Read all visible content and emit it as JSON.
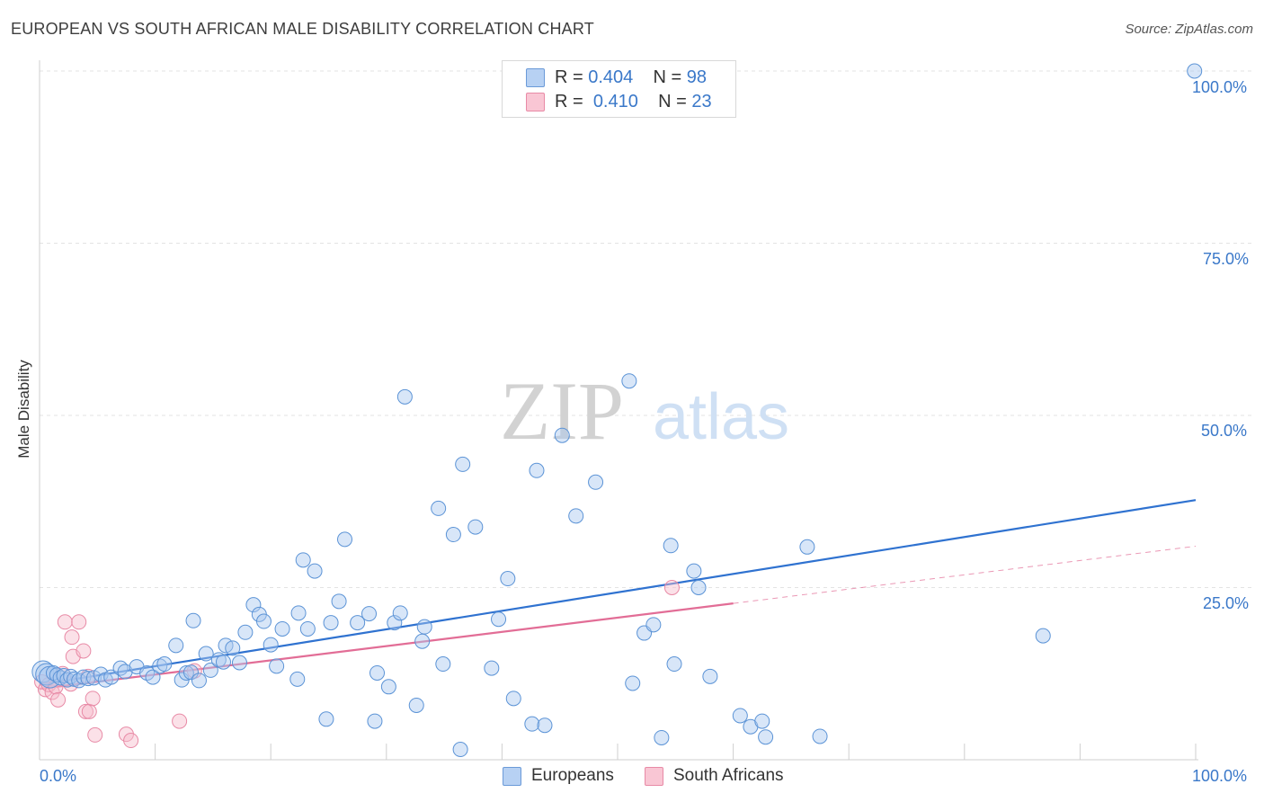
{
  "title": "EUROPEAN VS SOUTH AFRICAN MALE DISABILITY CORRELATION CHART",
  "source": "Source: ZipAtlas.com",
  "watermark": {
    "zip": "ZIP",
    "atlas": "atlas"
  },
  "legend": {
    "europeans": {
      "r_label": "R = ",
      "r_value": "0.404",
      "n_label": "N = ",
      "n_value": "98"
    },
    "south_africans": {
      "r_label": "R = ",
      "r_value": "0.410",
      "n_label": "N = ",
      "n_value": "23"
    }
  },
  "bottom_legend": {
    "europeans": "Europeans",
    "south_africans": "South Africans"
  },
  "colors": {
    "europeans_fill": "#a9c8f0",
    "europeans_stroke": "#5b93d6",
    "europeans_line": "#2f72d0",
    "south_africans_fill": "#f7bccb",
    "south_africans_stroke": "#e88aa6",
    "south_africans_line": "#e26d96",
    "axis_text": "#3a78c9",
    "grid": "#e3e3e3"
  },
  "chart_data": {
    "type": "scatter",
    "title": "EUROPEAN VS SOUTH AFRICAN MALE DISABILITY CORRELATION CHART",
    "ylabel": "Male Disability",
    "xlabel": "",
    "xlim": [
      0,
      100
    ],
    "ylim": [
      0,
      100
    ],
    "x_tick_labels": [
      "0.0%",
      "100.0%"
    ],
    "y_tick_labels": [
      "25.0%",
      "50.0%",
      "75.0%",
      "100.0%"
    ],
    "y_ticks": [
      25,
      50,
      75,
      100
    ],
    "grid": true,
    "series": [
      {
        "name": "Europeans",
        "r": 0.404,
        "n": 98,
        "trend": {
          "x": [
            0,
            100
          ],
          "y": [
            10.9,
            37.7
          ]
        },
        "points": [
          [
            0.3,
            12.8
          ],
          [
            0.6,
            12.4
          ],
          [
            0.9,
            12.0
          ],
          [
            1.2,
            12.6
          ],
          [
            1.5,
            12.3
          ],
          [
            1.8,
            11.9
          ],
          [
            2.1,
            12.2
          ],
          [
            2.4,
            11.6
          ],
          [
            2.7,
            12.1
          ],
          [
            3.0,
            11.7
          ],
          [
            3.4,
            11.5
          ],
          [
            3.8,
            12.0
          ],
          [
            4.2,
            11.8
          ],
          [
            4.7,
            11.9
          ],
          [
            5.3,
            12.4
          ],
          [
            5.7,
            11.6
          ],
          [
            6.2,
            12.0
          ],
          [
            7.0,
            13.3
          ],
          [
            7.4,
            12.8
          ],
          [
            8.4,
            13.5
          ],
          [
            9.3,
            12.6
          ],
          [
            9.8,
            12.0
          ],
          [
            10.4,
            13.6
          ],
          [
            10.8,
            13.9
          ],
          [
            11.8,
            16.6
          ],
          [
            12.3,
            11.6
          ],
          [
            12.7,
            12.6
          ],
          [
            13.1,
            12.7
          ],
          [
            13.3,
            20.2
          ],
          [
            13.8,
            11.5
          ],
          [
            14.4,
            15.4
          ],
          [
            14.8,
            13.0
          ],
          [
            15.5,
            14.5
          ],
          [
            15.9,
            14.2
          ],
          [
            16.1,
            16.6
          ],
          [
            16.7,
            16.2
          ],
          [
            17.3,
            14.1
          ],
          [
            17.8,
            18.5
          ],
          [
            18.5,
            22.5
          ],
          [
            19.0,
            21.1
          ],
          [
            19.4,
            20.1
          ],
          [
            20.0,
            16.7
          ],
          [
            20.5,
            13.6
          ],
          [
            21.0,
            19.0
          ],
          [
            22.4,
            21.3
          ],
          [
            22.8,
            29.0
          ],
          [
            23.2,
            19.0
          ],
          [
            23.8,
            27.4
          ],
          [
            22.3,
            11.7
          ],
          [
            25.2,
            19.9
          ],
          [
            25.9,
            23.0
          ],
          [
            26.4,
            32.0
          ],
          [
            27.5,
            19.9
          ],
          [
            28.5,
            21.2
          ],
          [
            29.2,
            12.6
          ],
          [
            30.7,
            19.9
          ],
          [
            31.2,
            21.3
          ],
          [
            31.6,
            52.7
          ],
          [
            32.6,
            7.9
          ],
          [
            33.3,
            19.3
          ],
          [
            34.5,
            36.5
          ],
          [
            34.9,
            13.9
          ],
          [
            35.8,
            32.7
          ],
          [
            36.6,
            42.9
          ],
          [
            37.7,
            33.8
          ],
          [
            39.1,
            13.3
          ],
          [
            39.7,
            20.4
          ],
          [
            40.5,
            26.3
          ],
          [
            41.0,
            8.9
          ],
          [
            43.0,
            42.0
          ],
          [
            42.6,
            5.2
          ],
          [
            43.7,
            5.0
          ],
          [
            45.2,
            47.1
          ],
          [
            46.4,
            35.4
          ],
          [
            48.1,
            40.3
          ],
          [
            51.0,
            55.0
          ],
          [
            51.3,
            11.1
          ],
          [
            52.3,
            18.4
          ],
          [
            53.1,
            19.6
          ],
          [
            53.8,
            3.2
          ],
          [
            54.6,
            31.1
          ],
          [
            54.9,
            13.9
          ],
          [
            56.6,
            27.4
          ],
          [
            57.0,
            25.0
          ],
          [
            58.0,
            12.1
          ],
          [
            60.6,
            6.4
          ],
          [
            61.5,
            4.8
          ],
          [
            62.5,
            5.6
          ],
          [
            62.8,
            3.3
          ],
          [
            66.4,
            30.9
          ],
          [
            67.5,
            3.4
          ],
          [
            86.8,
            18.0
          ],
          [
            99.9,
            100.0
          ],
          [
            24.8,
            5.9
          ],
          [
            29.0,
            5.6
          ],
          [
            30.2,
            10.6
          ],
          [
            36.4,
            1.5
          ],
          [
            33.1,
            17.2
          ]
        ]
      },
      {
        "name": "South Africans",
        "r": 0.41,
        "n": 23,
        "trend": {
          "x": [
            0,
            60
          ],
          "y": [
            10.3,
            22.7
          ],
          "dashed_extension": {
            "x": [
              60,
              100
            ],
            "y": [
              22.7,
              31.0
            ]
          }
        },
        "points": [
          [
            0.2,
            11.3
          ],
          [
            0.5,
            10.2
          ],
          [
            0.8,
            10.9
          ],
          [
            1.1,
            9.8
          ],
          [
            1.4,
            10.6
          ],
          [
            1.6,
            8.7
          ],
          [
            2.0,
            12.5
          ],
          [
            2.2,
            20.0
          ],
          [
            2.7,
            11.0
          ],
          [
            2.8,
            17.8
          ],
          [
            2.9,
            15.0
          ],
          [
            3.4,
            20.0
          ],
          [
            3.8,
            15.8
          ],
          [
            4.0,
            7.0
          ],
          [
            4.2,
            12.1
          ],
          [
            4.3,
            7.0
          ],
          [
            4.6,
            8.9
          ],
          [
            4.8,
            3.6
          ],
          [
            7.5,
            3.7
          ],
          [
            7.9,
            2.8
          ],
          [
            12.1,
            5.6
          ],
          [
            13.4,
            12.9
          ],
          [
            54.7,
            25.0
          ]
        ]
      }
    ]
  }
}
